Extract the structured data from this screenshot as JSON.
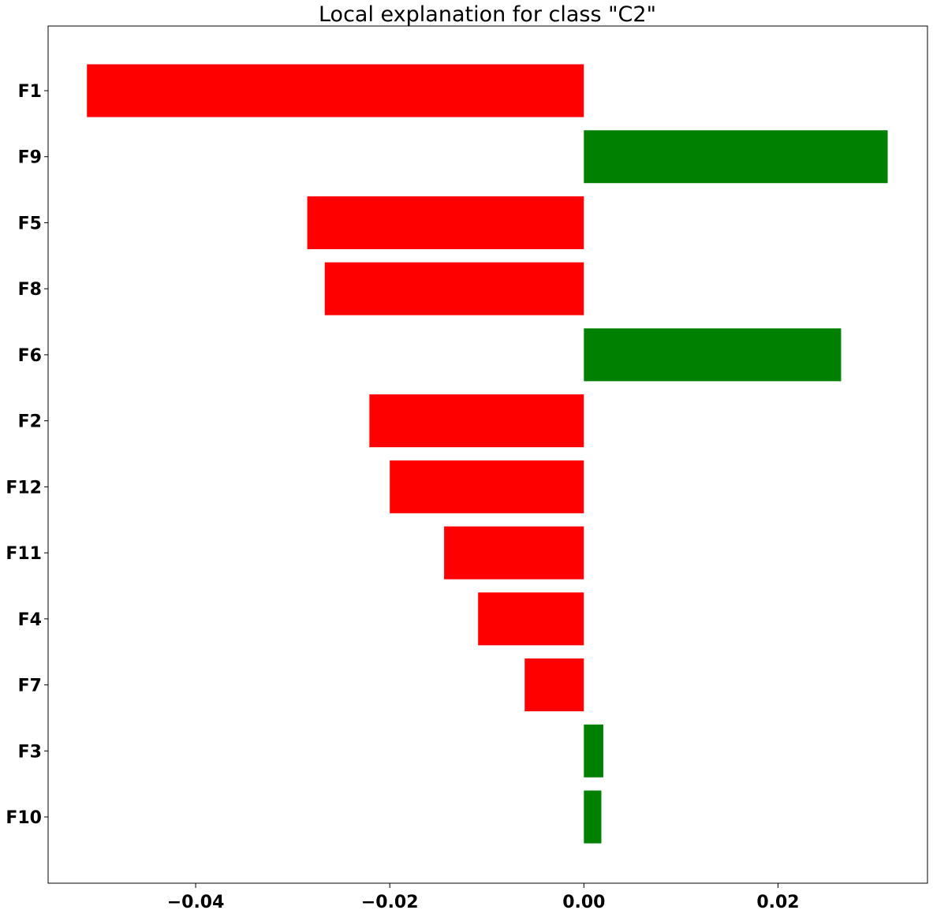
{
  "chart_data": {
    "type": "bar",
    "orientation": "horizontal",
    "title": "Local explanation for class \"C2\"",
    "xlabel": "",
    "ylabel": "",
    "categories": [
      "F1",
      "F9",
      "F5",
      "F8",
      "F6",
      "F2",
      "F12",
      "F11",
      "F4",
      "F7",
      "F3",
      "F10"
    ],
    "values": [
      -0.0512,
      0.0313,
      -0.0285,
      -0.0267,
      0.0265,
      -0.0221,
      -0.02,
      -0.0144,
      -0.0109,
      -0.0061,
      0.002,
      0.0018
    ],
    "xlim": [
      -0.0552,
      0.0354
    ],
    "xticks": [
      {
        "value": -0.04,
        "label": "−0.04"
      },
      {
        "value": -0.02,
        "label": "−0.02"
      },
      {
        "value": 0.0,
        "label": "0.00"
      },
      {
        "value": 0.02,
        "label": "0.02"
      }
    ],
    "colors": {
      "negative": "#ff0000",
      "positive": "#008000",
      "axis": "#000000"
    },
    "grid": false,
    "legend": "none"
  }
}
